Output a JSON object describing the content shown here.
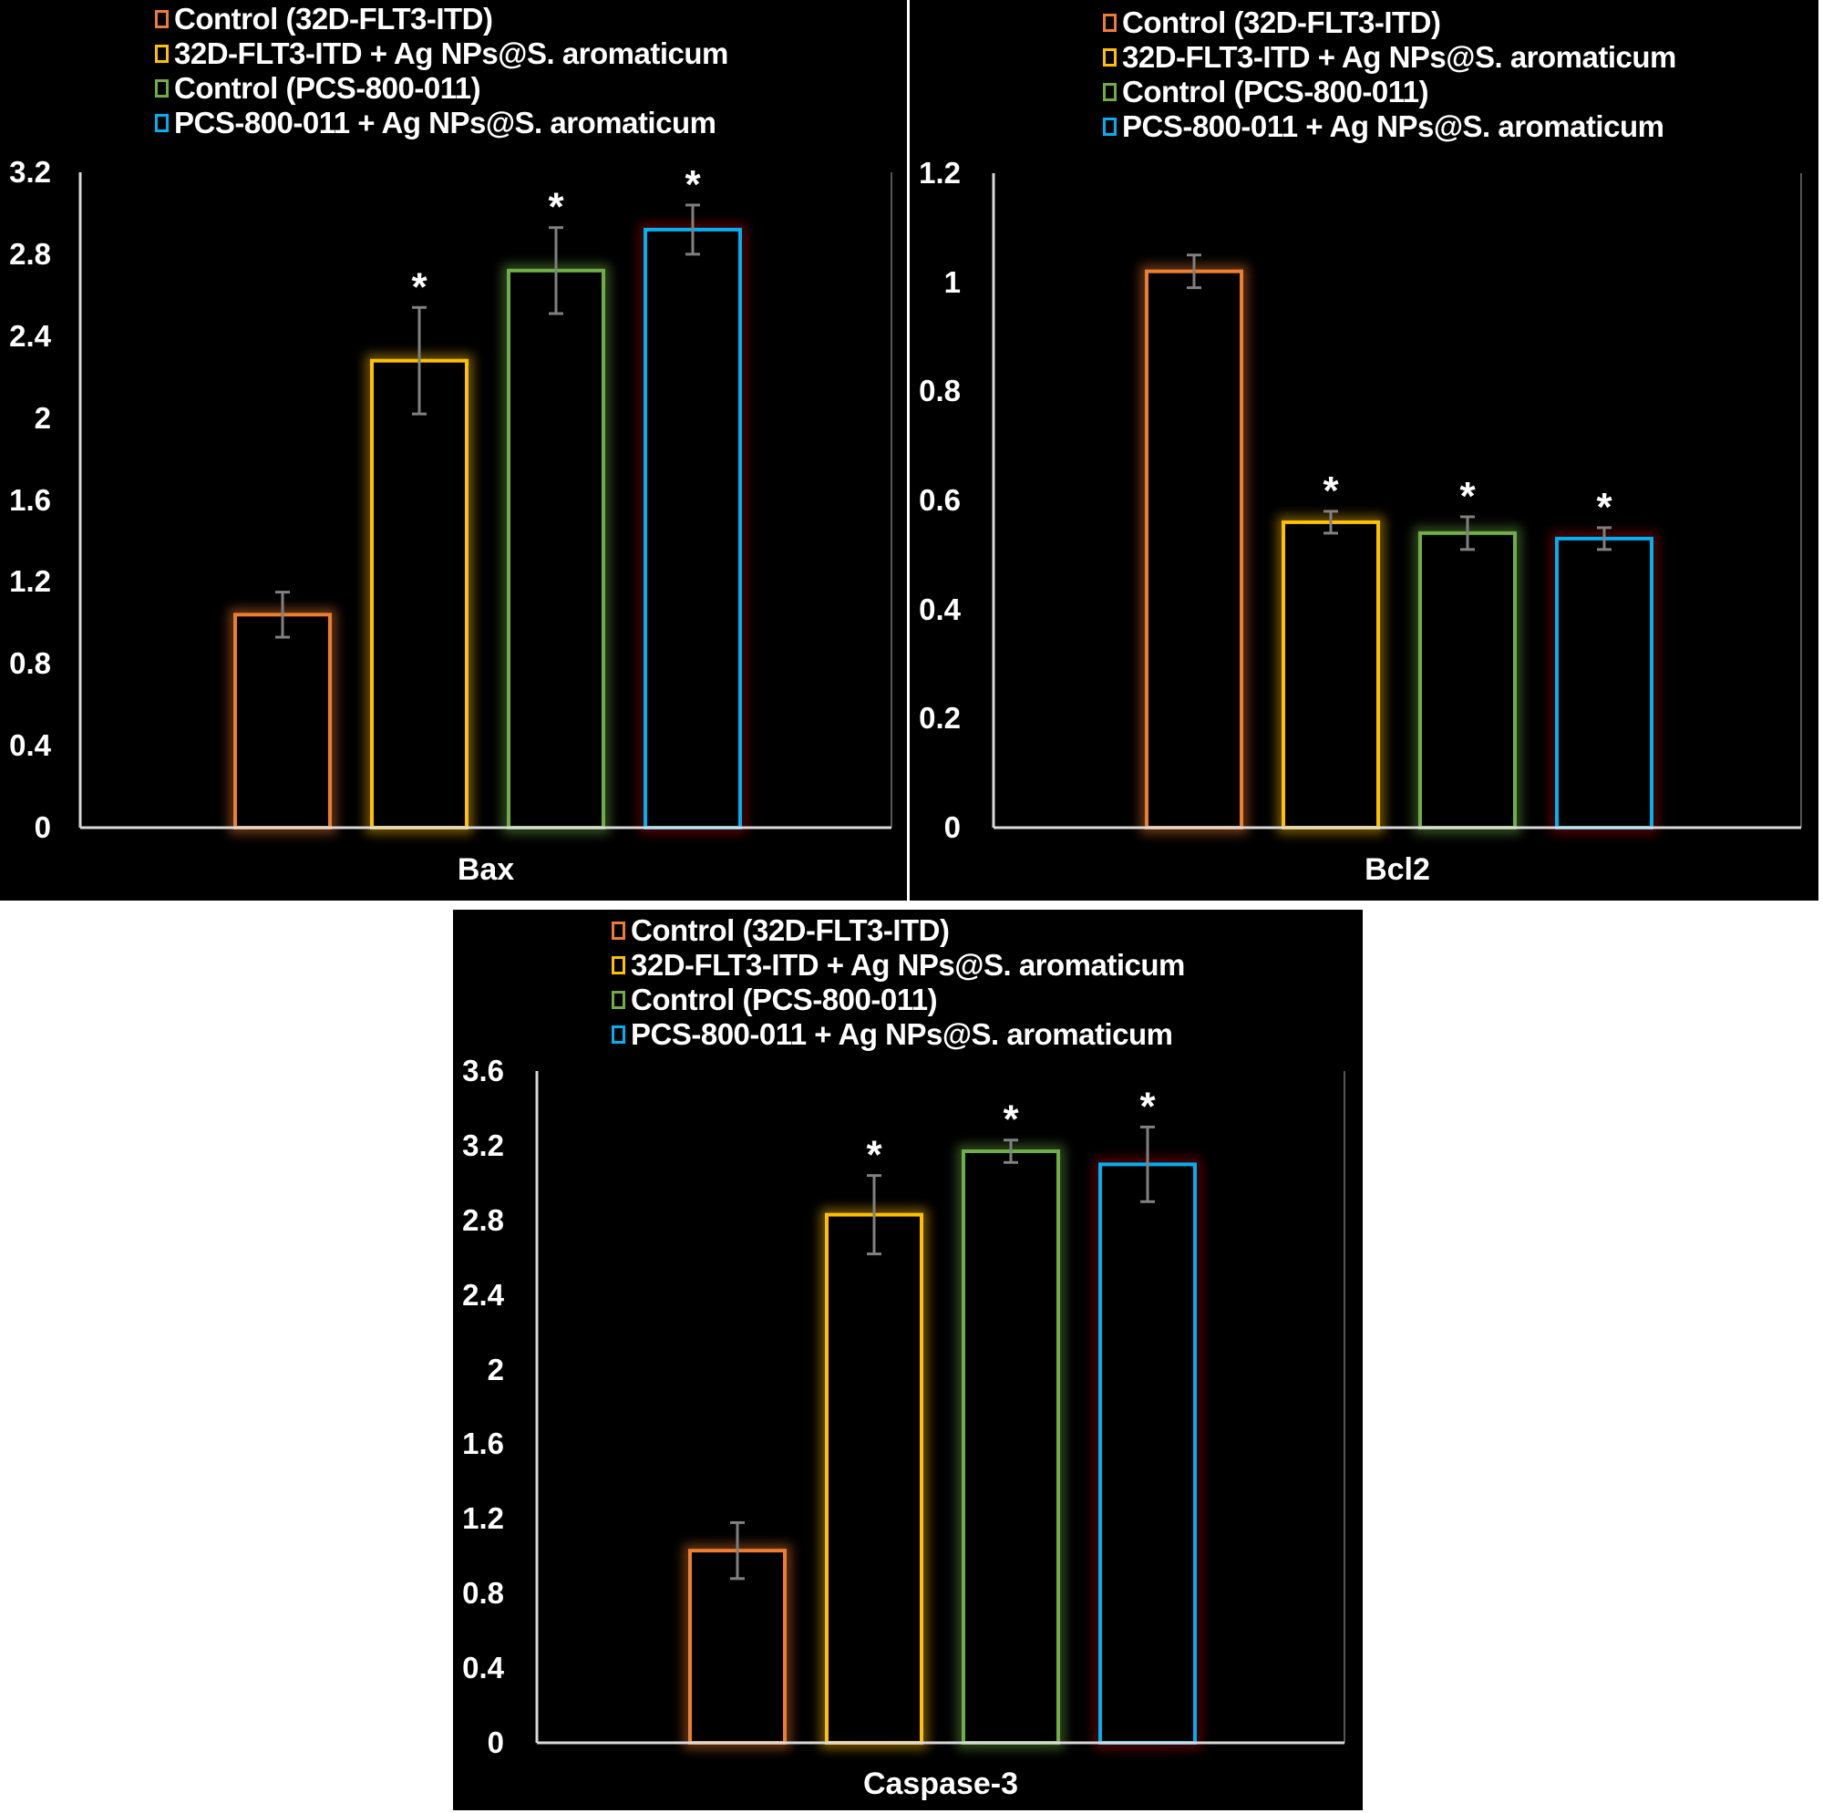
{
  "legend": [
    {
      "label": "Control (32D-FLT3-ITD)",
      "color": "#ED7D31"
    },
    {
      "label": "32D-FLT3-ITD + Ag NPs@S. aromaticum",
      "color": "#FFC000"
    },
    {
      "label": "Control (PCS-800-011)",
      "color": "#70AD47"
    },
    {
      "label": "PCS-800-011 + Ag NPs@S. aromaticum",
      "color": "#00B0F0"
    }
  ],
  "colors": {
    "background": "#000000",
    "axis": "#D9D9D9",
    "error_bar": "#808080",
    "text": "#FFFFFF",
    "blue_bar_glow": "#C00000"
  },
  "chart_data": [
    {
      "type": "bar",
      "title": "",
      "xlabel": "Bax",
      "ylabel": "",
      "ylim": [
        0,
        3.2
      ],
      "yticks": [
        "0",
        "0.4",
        "0.8",
        "1.2",
        "1.6",
        "2",
        "2.4",
        "2.8",
        "3.2"
      ],
      "categories": [
        "Bax"
      ],
      "series": [
        {
          "name": "Control (32D-FLT3-ITD)",
          "values": [
            1.04
          ],
          "error": [
            0.11
          ],
          "significant": false
        },
        {
          "name": "32D-FLT3-ITD + Ag NPs@S. aromaticum",
          "values": [
            2.28
          ],
          "error": [
            0.26
          ],
          "significant": true
        },
        {
          "name": "Control (PCS-800-011)",
          "values": [
            2.72
          ],
          "error": [
            0.21
          ],
          "significant": true
        },
        {
          "name": "PCS-800-011 + Ag NPs@S. aromaticum",
          "values": [
            2.92
          ],
          "error": [
            0.12
          ],
          "significant": true
        }
      ],
      "significance_marker": "*",
      "legend_position": "top",
      "grid": false
    },
    {
      "type": "bar",
      "title": "",
      "xlabel": "Bcl2",
      "ylabel": "",
      "ylim": [
        0,
        1.2
      ],
      "yticks": [
        "0",
        "0.2",
        "0.4",
        "0.6",
        "0.8",
        "1",
        "1.2"
      ],
      "categories": [
        "Bcl2"
      ],
      "series": [
        {
          "name": "Control (32D-FLT3-ITD)",
          "values": [
            1.02
          ],
          "error": [
            0.03
          ],
          "significant": false
        },
        {
          "name": "32D-FLT3-ITD + Ag NPs@S. aromaticum",
          "values": [
            0.56
          ],
          "error": [
            0.02
          ],
          "significant": true
        },
        {
          "name": "Control (PCS-800-011)",
          "values": [
            0.54
          ],
          "error": [
            0.03
          ],
          "significant": true
        },
        {
          "name": "PCS-800-011 + Ag NPs@S. aromaticum",
          "values": [
            0.53
          ],
          "error": [
            0.02
          ],
          "significant": true
        }
      ],
      "significance_marker": "*",
      "legend_position": "top",
      "grid": false
    },
    {
      "type": "bar",
      "title": "",
      "xlabel": "Caspase-3",
      "ylabel": "",
      "ylim": [
        0,
        3.6
      ],
      "yticks": [
        "0",
        "0.4",
        "0.8",
        "1.2",
        "1.6",
        "2",
        "2.4",
        "2.8",
        "3.2",
        "3.6"
      ],
      "categories": [
        "Caspase-3"
      ],
      "series": [
        {
          "name": "Control (32D-FLT3-ITD)",
          "values": [
            1.03
          ],
          "error": [
            0.15
          ],
          "significant": false
        },
        {
          "name": "32D-FLT3-ITD + Ag NPs@S. aromaticum",
          "values": [
            2.83
          ],
          "error": [
            0.21
          ],
          "significant": true
        },
        {
          "name": "Control (PCS-800-011)",
          "values": [
            3.17
          ],
          "error": [
            0.06
          ],
          "significant": true
        },
        {
          "name": "PCS-800-011 + Ag NPs@S. aromaticum",
          "values": [
            3.1
          ],
          "error": [
            0.2
          ],
          "significant": true
        }
      ],
      "significance_marker": "*",
      "legend_position": "top",
      "grid": false
    }
  ]
}
